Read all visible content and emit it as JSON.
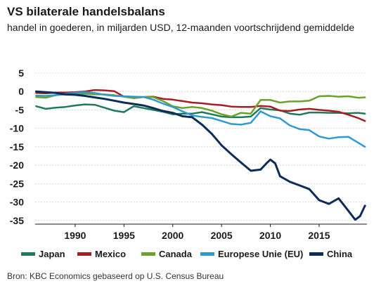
{
  "title": "VS bilaterale handelsbalans",
  "subtitle": "handel in goederen, in miljarden USD, 12-maanden voortschrijdend gemiddelde",
  "source": "Bron: KBC Economics gebaseerd op U.S. Census Bureau",
  "chart_data": {
    "type": "line",
    "title": "VS bilaterale handelsbalans",
    "subtitle": "handel in goederen, in miljarden USD, 12-maanden voortschrijdend gemiddelde",
    "xlabel": "",
    "ylabel": "",
    "xlim": [
      1985.9,
      2019.9
    ],
    "ylim": [
      -36,
      5
    ],
    "x_ticks": [
      1990,
      1995,
      2000,
      2005,
      2010,
      2015
    ],
    "y_ticks": [
      5,
      0,
      -5,
      -10,
      -15,
      -20,
      -25,
      -30,
      -35
    ],
    "grid": "horizontal",
    "legend_position": "bottom",
    "series": [
      {
        "name": "Japan",
        "color": "#1f7a5a",
        "points": [
          [
            1986,
            -4
          ],
          [
            1987,
            -4.7
          ],
          [
            1988,
            -4.4
          ],
          [
            1989,
            -4.2
          ],
          [
            1990,
            -3.8
          ],
          [
            1991,
            -3.5
          ],
          [
            1992,
            -3.6
          ],
          [
            1993,
            -4.4
          ],
          [
            1994,
            -5.2
          ],
          [
            1995,
            -5.6
          ],
          [
            1996,
            -4
          ],
          [
            1997,
            -4.5
          ],
          [
            1998,
            -5
          ],
          [
            1999,
            -5.5
          ],
          [
            2000,
            -6.2
          ],
          [
            2001,
            -6
          ],
          [
            2002,
            -6
          ],
          [
            2003,
            -5.6
          ],
          [
            2004,
            -6.2
          ],
          [
            2005,
            -6.8
          ],
          [
            2006,
            -7
          ],
          [
            2007,
            -7
          ],
          [
            2008,
            -6.8
          ],
          [
            2009,
            -4.5
          ],
          [
            2010,
            -4.9
          ],
          [
            2011,
            -5.1
          ],
          [
            2012,
            -6
          ],
          [
            2013,
            -6.3
          ],
          [
            2014,
            -5.7
          ],
          [
            2015,
            -5.7
          ],
          [
            2016,
            -5.8
          ],
          [
            2017,
            -5.8
          ],
          [
            2018,
            -5.9
          ],
          [
            2019,
            -5.8
          ],
          [
            2019.7,
            -6
          ]
        ]
      },
      {
        "name": "Mexico",
        "color": "#a51e24",
        "points": [
          [
            1986,
            -0.4
          ],
          [
            1987,
            -0.5
          ],
          [
            1988,
            -0.3
          ],
          [
            1989,
            -0.3
          ],
          [
            1990,
            -0.2
          ],
          [
            1991,
            0
          ],
          [
            1992,
            0.4
          ],
          [
            1993,
            0.3
          ],
          [
            1994,
            0.1
          ],
          [
            1995,
            -1.4
          ],
          [
            1996,
            -1.5
          ],
          [
            1997,
            -1.5
          ],
          [
            1998,
            -1.4
          ],
          [
            1999,
            -2
          ],
          [
            2000,
            -2.2
          ],
          [
            2001,
            -2.6
          ],
          [
            2002,
            -3
          ],
          [
            2003,
            -3.2
          ],
          [
            2004,
            -3.5
          ],
          [
            2005,
            -3.7
          ],
          [
            2006,
            -4.1
          ],
          [
            2007,
            -4.2
          ],
          [
            2008,
            -4.2
          ],
          [
            2009,
            -3.9
          ],
          [
            2010,
            -4.1
          ],
          [
            2011,
            -5.2
          ],
          [
            2012,
            -5.3
          ],
          [
            2013,
            -4.9
          ],
          [
            2014,
            -4.7
          ],
          [
            2015,
            -5
          ],
          [
            2016,
            -5.2
          ],
          [
            2017,
            -5.5
          ],
          [
            2018,
            -6.3
          ],
          [
            2019,
            -7.2
          ],
          [
            2019.7,
            -8
          ]
        ]
      },
      {
        "name": "Canada",
        "color": "#6aa22c",
        "points": [
          [
            1986,
            -1.5
          ],
          [
            1987,
            -1.7
          ],
          [
            1988,
            -1
          ],
          [
            1989,
            -0.8
          ],
          [
            1990,
            -0.7
          ],
          [
            1991,
            -0.6
          ],
          [
            1992,
            -0.8
          ],
          [
            1993,
            -0.8
          ],
          [
            1994,
            -1
          ],
          [
            1995,
            -1.4
          ],
          [
            1996,
            -1.8
          ],
          [
            1997,
            -1.5
          ],
          [
            1998,
            -1.5
          ],
          [
            1999,
            -2.6
          ],
          [
            2000,
            -4
          ],
          [
            2001,
            -4.5
          ],
          [
            2002,
            -4.2
          ],
          [
            2003,
            -4.5
          ],
          [
            2004,
            -5.2
          ],
          [
            2005,
            -6.2
          ],
          [
            2006,
            -6.8
          ],
          [
            2007,
            -5.8
          ],
          [
            2008,
            -6
          ],
          [
            2009,
            -2.3
          ],
          [
            2010,
            -2.3
          ],
          [
            2011,
            -3
          ],
          [
            2012,
            -2.7
          ],
          [
            2013,
            -2.7
          ],
          [
            2014,
            -2.5
          ],
          [
            2015,
            -1.3
          ],
          [
            2016,
            -1.2
          ],
          [
            2017,
            -1.4
          ],
          [
            2018,
            -1.3
          ],
          [
            2019,
            -1.7
          ],
          [
            2019.7,
            -1.6
          ]
        ]
      },
      {
        "name": "Europese Unie (EU)",
        "color": "#2e9ad0",
        "points": [
          [
            1986,
            -1.1
          ],
          [
            1987,
            -1.2
          ],
          [
            1988,
            -1
          ],
          [
            1989,
            -0.6
          ],
          [
            1990,
            -0.4
          ],
          [
            1991,
            -0.2
          ],
          [
            1992,
            -0.4
          ],
          [
            1993,
            -0.9
          ],
          [
            1994,
            -1.2
          ],
          [
            1995,
            -1.3
          ],
          [
            1996,
            -1.4
          ],
          [
            1997,
            -1.5
          ],
          [
            1998,
            -2.2
          ],
          [
            1999,
            -3.3
          ],
          [
            2000,
            -4.2
          ],
          [
            2001,
            -5.4
          ],
          [
            2002,
            -6.5
          ],
          [
            2003,
            -6.9
          ],
          [
            2004,
            -7.2
          ],
          [
            2005,
            -8
          ],
          [
            2006,
            -8.8
          ],
          [
            2007,
            -9
          ],
          [
            2008,
            -8.5
          ],
          [
            2009,
            -5.4
          ],
          [
            2010,
            -6.7
          ],
          [
            2011,
            -7.3
          ],
          [
            2012,
            -9.2
          ],
          [
            2013,
            -10.2
          ],
          [
            2014,
            -10.5
          ],
          [
            2015,
            -12.2
          ],
          [
            2016,
            -12.8
          ],
          [
            2017,
            -12.4
          ],
          [
            2018,
            -12.3
          ],
          [
            2019,
            -13.9
          ],
          [
            2019.7,
            -15
          ]
        ]
      },
      {
        "name": "China",
        "color": "#0d2c5a",
        "points": [
          [
            1986,
            0
          ],
          [
            1987,
            -0.2
          ],
          [
            1988,
            -0.4
          ],
          [
            1989,
            -0.8
          ],
          [
            1990,
            -0.9
          ],
          [
            1991,
            -1.2
          ],
          [
            1992,
            -1.6
          ],
          [
            1993,
            -2
          ],
          [
            1994,
            -2.5
          ],
          [
            1995,
            -3
          ],
          [
            1996,
            -3.4
          ],
          [
            1997,
            -3.8
          ],
          [
            1998,
            -4.5
          ],
          [
            1999,
            -5.3
          ],
          [
            2000,
            -5.8
          ],
          [
            2001,
            -6.7
          ],
          [
            2002,
            -7
          ],
          [
            2003,
            -9
          ],
          [
            2004,
            -11.5
          ],
          [
            2005,
            -14.6
          ],
          [
            2006,
            -17
          ],
          [
            2007,
            -19.3
          ],
          [
            2008,
            -21.5
          ],
          [
            2009,
            -21.2
          ],
          [
            2009.6,
            -19.5
          ],
          [
            2010,
            -18.5
          ],
          [
            2010.5,
            -19.5
          ],
          [
            2011,
            -23
          ],
          [
            2012,
            -24.5
          ],
          [
            2013,
            -25.5
          ],
          [
            2014,
            -26.5
          ],
          [
            2015,
            -29.5
          ],
          [
            2016,
            -30.5
          ],
          [
            2017,
            -29
          ],
          [
            2018,
            -32.4
          ],
          [
            2018.7,
            -34.8
          ],
          [
            2019.2,
            -33.8
          ],
          [
            2019.7,
            -31
          ]
        ]
      }
    ]
  }
}
